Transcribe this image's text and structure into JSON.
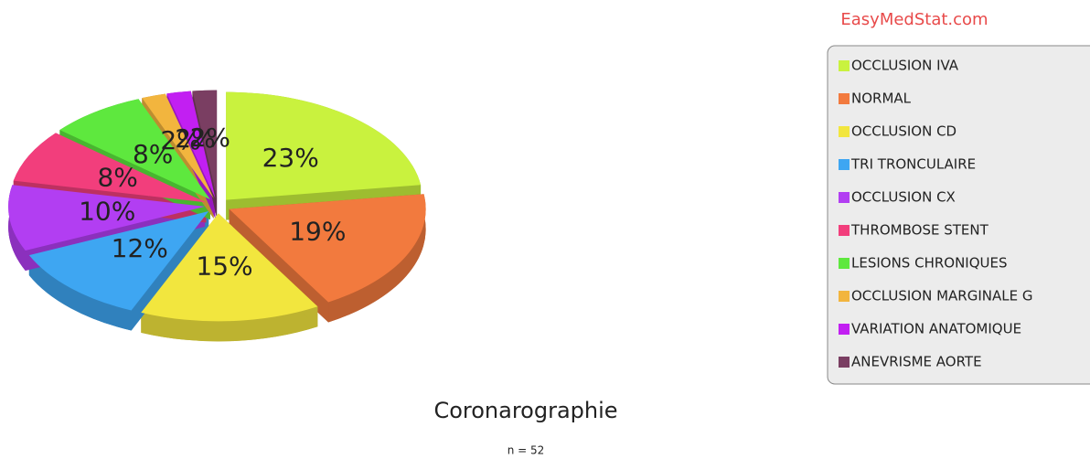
{
  "chart_data": {
    "type": "pie",
    "title": "Coronarographie",
    "subtitle": "n = 52",
    "watermark": "EasyMedStat.com",
    "categories": [
      "OCCLUSION IVA",
      "NORMAL",
      "OCCLUSION CD",
      "TRI TRONCULAIRE",
      "OCCLUSION CX",
      "THROMBOSE STENT",
      "LESIONS CHRONIQUES",
      "OCCLUSION MARGINALE G",
      "VARIATION ANATOMIQUE",
      "ANEVRISME AORTE"
    ],
    "values": [
      23,
      19,
      15,
      12,
      10,
      8,
      8,
      2,
      2,
      2
    ],
    "value_labels": [
      "23%",
      "19%",
      "15%",
      "12%",
      "10%",
      "8%",
      "8%",
      "2%",
      "2%",
      "2%"
    ],
    "colors": [
      "#c9f23e",
      "#f27a3e",
      "#f2e63e",
      "#3ea6f2",
      "#b23ef2",
      "#f23e7c",
      "#5ee83e",
      "#f2b53e",
      "#c21ff2",
      "#7a3e62"
    ],
    "legend": "right"
  }
}
